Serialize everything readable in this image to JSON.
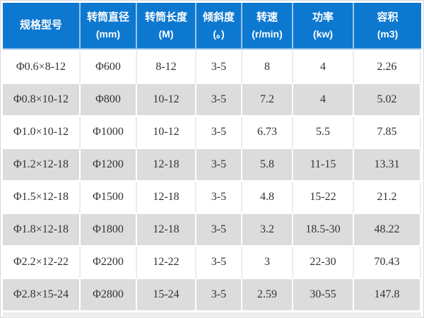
{
  "table": {
    "columns": [
      {
        "label": "规格型号",
        "unit": ""
      },
      {
        "label": "转筒直径",
        "unit": "(mm)"
      },
      {
        "label": "转筒长度",
        "unit": "(M)"
      },
      {
        "label": "倾斜度",
        "unit": "(。)"
      },
      {
        "label": "转速",
        "unit": "(r/min)"
      },
      {
        "label": "功率",
        "unit": "(kw)"
      },
      {
        "label": "容积",
        "unit": "(m3)"
      }
    ],
    "rows": [
      [
        "Φ0.6×8-12",
        "Φ600",
        "8-12",
        "3-5",
        "8",
        "4",
        "2.26"
      ],
      [
        "Φ0.8×10-12",
        "Φ800",
        "10-12",
        "3-5",
        "7.2",
        "4",
        "5.02"
      ],
      [
        "Φ1.0×10-12",
        "Φ1000",
        "10-12",
        "3-5",
        "6.73",
        "5.5",
        "7.85"
      ],
      [
        "Φ1.2×12-18",
        "Φ1200",
        "12-18",
        "3-5",
        "5.8",
        "11-15",
        "13.31"
      ],
      [
        "Φ1.5×12-18",
        "Φ1500",
        "12-18",
        "3-5",
        "4.8",
        "15-22",
        "21.2"
      ],
      [
        "Φ1.8×12-18",
        "Φ1800",
        "12-18",
        "3-5",
        "3.2",
        "18.5-30",
        "48.22"
      ],
      [
        "Φ2.2×12-22",
        "Φ2200",
        "12-22",
        "3-5",
        "3",
        "22-30",
        "70.43"
      ],
      [
        "Φ2.8×15-24",
        "Φ2800",
        "15-24",
        "3-5",
        "2.59",
        "30-55",
        "147.8"
      ]
    ],
    "colors": {
      "header_bg": "#0d78cf",
      "header_text": "#ffffff",
      "header_divider": "#9dc5ee",
      "row_bg": "#ffffff",
      "row_alt_bg": "#dcdcdc",
      "body_text": "#333333"
    }
  }
}
